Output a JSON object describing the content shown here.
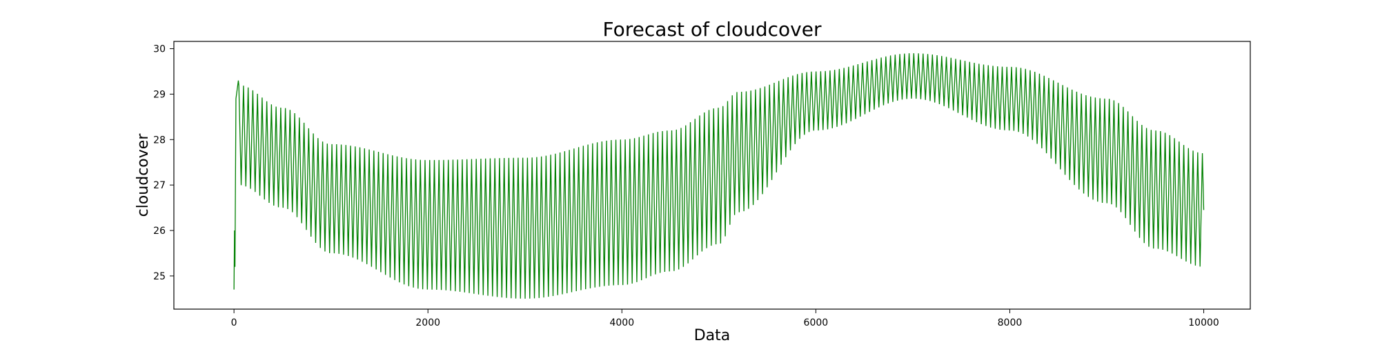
{
  "chart_data": {
    "type": "line",
    "title": "Forecast of cloudcover",
    "xlabel": "Data",
    "ylabel": "cloudcover",
    "xlim": [
      -620,
      10480
    ],
    "ylim": [
      24.27,
      30.16
    ],
    "x_ticks": [
      0,
      2000,
      4000,
      6000,
      8000,
      10000
    ],
    "x_tick_labels": [
      "0",
      "2000",
      "4000",
      "6000",
      "8000",
      "10000"
    ],
    "y_ticks": [
      25,
      26,
      27,
      28,
      29,
      30
    ],
    "y_tick_labels": [
      "25",
      "26",
      "27",
      "28",
      "29",
      "30"
    ],
    "grid": false,
    "legend": "none",
    "series_color": "#008000",
    "oscillation_period": 48,
    "series": [
      {
        "x_start": 0,
        "x_end": 10000,
        "initial_points": [
          {
            "x": 0,
            "y": 24.7
          },
          {
            "x": 5,
            "y": 26.0
          },
          {
            "x": 10,
            "y": 25.2
          },
          {
            "x": 20,
            "y": 28.9
          },
          {
            "x": 45,
            "y": 29.3
          }
        ],
        "upper_envelope": [
          {
            "x": 50,
            "y": 29.2
          },
          {
            "x": 500,
            "y": 28.7
          },
          {
            "x": 1000,
            "y": 27.9
          },
          {
            "x": 2000,
            "y": 27.55
          },
          {
            "x": 3000,
            "y": 27.6
          },
          {
            "x": 4000,
            "y": 28.0
          },
          {
            "x": 4500,
            "y": 28.2
          },
          {
            "x": 5000,
            "y": 28.7
          },
          {
            "x": 5200,
            "y": 29.05
          },
          {
            "x": 6000,
            "y": 29.5
          },
          {
            "x": 7000,
            "y": 29.9
          },
          {
            "x": 8000,
            "y": 29.6
          },
          {
            "x": 9000,
            "y": 28.9
          },
          {
            "x": 9500,
            "y": 28.2
          },
          {
            "x": 10000,
            "y": 27.7
          }
        ],
        "lower_envelope": [
          {
            "x": 50,
            "y": 27.0
          },
          {
            "x": 500,
            "y": 26.5
          },
          {
            "x": 1000,
            "y": 25.5
          },
          {
            "x": 2000,
            "y": 24.7
          },
          {
            "x": 3000,
            "y": 24.5
          },
          {
            "x": 4000,
            "y": 24.8
          },
          {
            "x": 4500,
            "y": 25.1
          },
          {
            "x": 5000,
            "y": 25.7
          },
          {
            "x": 5200,
            "y": 26.4
          },
          {
            "x": 6000,
            "y": 28.2
          },
          {
            "x": 7000,
            "y": 28.9
          },
          {
            "x": 8000,
            "y": 28.2
          },
          {
            "x": 9000,
            "y": 26.6
          },
          {
            "x": 9500,
            "y": 25.6
          },
          {
            "x": 10000,
            "y": 25.2
          }
        ]
      }
    ]
  }
}
